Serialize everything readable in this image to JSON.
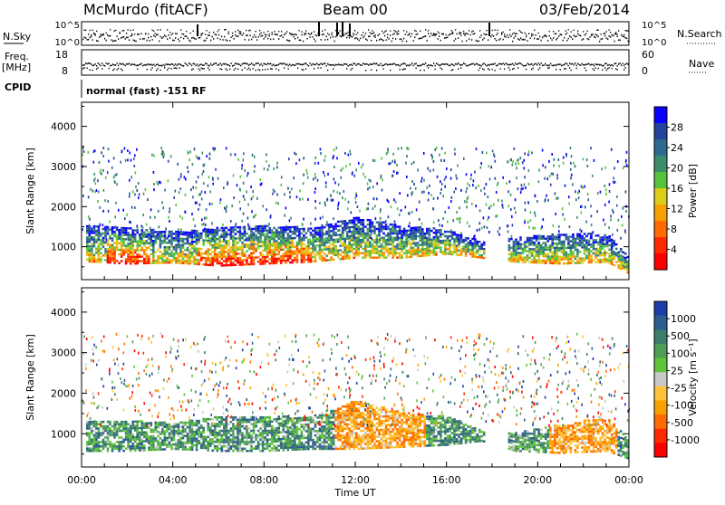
{
  "header": {
    "title": "McMurdo (fitACF)",
    "beam": "Beam 00",
    "date": "03/Feb/2014"
  },
  "status_panel": {
    "nsky_label": "N.Sky",
    "nsky_ticks": [
      "10^5",
      "10^0"
    ],
    "nsearch_label": "N.Search",
    "nsearch_ticks": [
      "10^5",
      "10^0"
    ],
    "freq_label": "Freq.",
    "freq_unit": "[MHz]",
    "freq_ticks": [
      "18",
      "8"
    ],
    "nave_label": "Nave",
    "nave_ticks": [
      "60",
      "0"
    ],
    "cpid_label": "CPID",
    "cpid_value": "normal (fast) -151 RF"
  },
  "chart_data": [
    {
      "type": "heatmap",
      "name": "power",
      "ylabel": "Slant Range [km]",
      "ylim": [
        180,
        4600
      ],
      "yticks": [
        1000,
        2000,
        3000,
        4000
      ],
      "xlim": [
        0,
        24
      ],
      "colorbar": {
        "label": "Power [dB]",
        "ticks": [
          "28",
          "24",
          "20",
          "16",
          "12",
          "8",
          "4"
        ],
        "colors": [
          "#0a00ff",
          "#23439c",
          "#2f6a8f",
          "#3c8e6a",
          "#56c33a",
          "#dccd1c",
          "#f7a100",
          "#ff6b00",
          "#ff2a00",
          "#ff0000"
        ]
      },
      "echo_band": [
        {
          "t": 0.5,
          "lo": 600,
          "hi": 1500
        },
        {
          "t": 2,
          "lo": 550,
          "hi": 1450
        },
        {
          "t": 4,
          "lo": 580,
          "hi": 1350
        },
        {
          "t": 6,
          "lo": 500,
          "hi": 1450
        },
        {
          "t": 8,
          "lo": 550,
          "hi": 1500
        },
        {
          "t": 10,
          "lo": 600,
          "hi": 1450
        },
        {
          "t": 12,
          "lo": 700,
          "hi": 1700
        },
        {
          "t": 14,
          "lo": 700,
          "hi": 1500
        },
        {
          "t": 16,
          "lo": 800,
          "hi": 1400
        },
        {
          "t": 17.5,
          "lo": 700,
          "hi": 1100
        },
        {
          "t": 19,
          "lo": 600,
          "hi": 1200
        },
        {
          "t": 21,
          "lo": 550,
          "hi": 1300
        },
        {
          "t": 23,
          "lo": 600,
          "hi": 1300
        },
        {
          "t": 24,
          "lo": 300,
          "hi": 700
        }
      ]
    },
    {
      "type": "heatmap",
      "name": "velocity",
      "ylabel": "Slant Range [km]",
      "ylim": [
        180,
        4600
      ],
      "yticks": [
        1000,
        2000,
        3000,
        4000
      ],
      "xlim": [
        0,
        24
      ],
      "xticks": [
        "00:00",
        "04:00",
        "08:00",
        "12:00",
        "16:00",
        "20:00",
        "00:00"
      ],
      "xlabel": "Time UT",
      "colorbar": {
        "label": "Velocity [m s⁻¹]",
        "ticks": [
          "1000",
          "500",
          "100",
          "25",
          "-25",
          "-100",
          "-500",
          "-1000"
        ],
        "colors": [
          "#1b3fa6",
          "#2d5d8e",
          "#3c7d6b",
          "#4f9e57",
          "#5fc43a",
          "#c8c8c8",
          "#ffc23a",
          "#f7a100",
          "#ff6b00",
          "#ff2a00",
          "#ff0000"
        ]
      },
      "echo_band": [
        {
          "t": 0.5,
          "lo": 550,
          "hi": 1300
        },
        {
          "t": 2,
          "lo": 550,
          "hi": 1300
        },
        {
          "t": 4,
          "lo": 600,
          "hi": 1250
        },
        {
          "t": 6,
          "lo": 550,
          "hi": 1400
        },
        {
          "t": 8,
          "lo": 550,
          "hi": 1400
        },
        {
          "t": 10,
          "lo": 600,
          "hi": 1400
        },
        {
          "t": 12,
          "lo": 600,
          "hi": 1800
        },
        {
          "t": 14,
          "lo": 650,
          "hi": 1500
        },
        {
          "t": 16,
          "lo": 700,
          "hi": 1400
        },
        {
          "t": 17.5,
          "lo": 800,
          "hi": 1050
        },
        {
          "t": 19,
          "lo": 550,
          "hi": 1000
        },
        {
          "t": 21,
          "lo": 500,
          "hi": 1200
        },
        {
          "t": 23,
          "lo": 550,
          "hi": 1400
        },
        {
          "t": 24,
          "lo": 350,
          "hi": 800
        }
      ]
    }
  ]
}
